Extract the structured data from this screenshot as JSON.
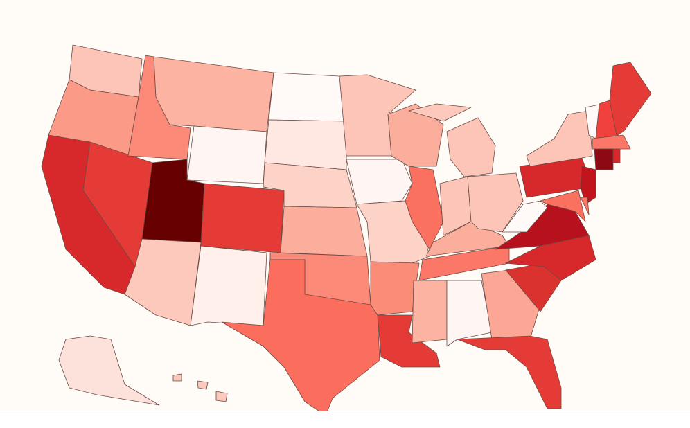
{
  "map": {
    "background": "#fffcf7",
    "border": "#6b4a44",
    "regions": [
      {
        "color": "#fdc5b8"
      },
      {
        "color": "#fc9a88"
      },
      {
        "color": "#d7282c"
      },
      {
        "color": "#e53b36"
      },
      {
        "color": "#fc8a79"
      },
      {
        "color": "#fcb3a2"
      },
      {
        "color": "#fff5f2"
      },
      {
        "color": "#670000"
      },
      {
        "color": "#fcc9bc"
      },
      {
        "color": "#e53b36"
      },
      {
        "color": "#fff0ec"
      },
      {
        "color": "#fffaf8"
      },
      {
        "color": "#ffe8e2"
      },
      {
        "color": "#fdd3c8"
      },
      {
        "color": "#fcae9c"
      },
      {
        "color": "#fc8a79"
      },
      {
        "color": "#fb6d5d"
      },
      {
        "color": "#fdc5b8"
      },
      {
        "color": "#fff5f2"
      },
      {
        "color": "#fdd3c8"
      },
      {
        "color": "#fb8c78"
      },
      {
        "color": "#e53b36"
      },
      {
        "color": "#fcae9c"
      },
      {
        "color": "#fb7160"
      },
      {
        "color": "#fcb3a2"
      },
      {
        "color": "#fff5f2"
      },
      {
        "color": "#fb7868"
      },
      {
        "color": "#fcae9c"
      },
      {
        "color": "#fdc5b8"
      },
      {
        "color": "#fdc5b8"
      },
      {
        "color": "#fdc5b8"
      },
      {
        "color": "#fcc9bc"
      },
      {
        "color": "#fca796"
      },
      {
        "color": "#e53b36"
      },
      {
        "color": "#d9322f"
      },
      {
        "color": "#d7282c"
      },
      {
        "color": "#b7111e"
      },
      {
        "color": "#fffaf8"
      },
      {
        "color": "#d7282c"
      },
      {
        "color": "#fdc5b8"
      },
      {
        "color": "#fffaf8"
      },
      {
        "color": "#f1413c"
      },
      {
        "color": "#e53b36"
      },
      {
        "color": "#fb7868"
      },
      {
        "color": "#8d0913"
      },
      {
        "color": "#d7282c"
      },
      {
        "color": "#c1141d"
      },
      {
        "color": "#fb7160"
      },
      {
        "color": "#fb7868"
      },
      {
        "color": "#fde2db"
      },
      {
        "color": "#fcc9bc"
      }
    ]
  }
}
